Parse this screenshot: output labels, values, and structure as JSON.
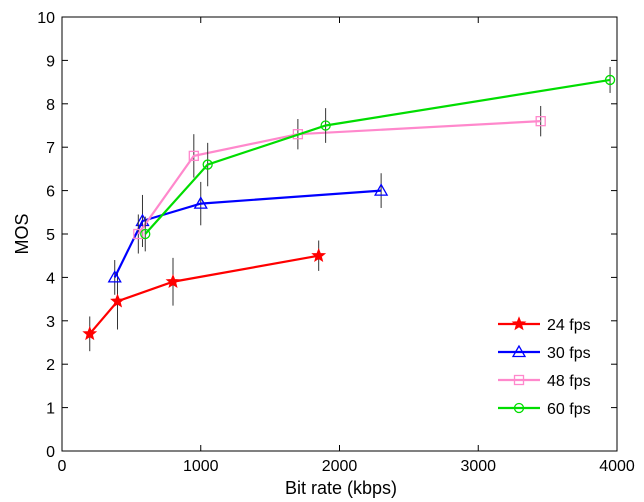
{
  "chart_data": {
    "type": "line",
    "xlabel": "Bit rate (kbps)",
    "ylabel": "MOS",
    "xlim": [
      0,
      4000
    ],
    "ylim": [
      0,
      10
    ],
    "xticks": [
      0,
      1000,
      2000,
      3000,
      4000
    ],
    "yticks": [
      0,
      1,
      2,
      3,
      4,
      5,
      6,
      7,
      8,
      9,
      10
    ],
    "xtick_labels": [
      "0",
      "1000",
      "2000",
      "3000",
      "4000"
    ],
    "ytick_labels": [
      "0",
      "1",
      "2",
      "3",
      "4",
      "5",
      "6",
      "7",
      "8",
      "9",
      "10"
    ],
    "grid": false,
    "legend_position": "bottom-right",
    "series": [
      {
        "name": "24 fps",
        "color": "#ff0000",
        "marker": "star",
        "points": [
          {
            "x": 200,
            "y": 2.7,
            "err": 0.4
          },
          {
            "x": 400,
            "y": 3.45,
            "err": 0.65
          },
          {
            "x": 800,
            "y": 3.9,
            "err": 0.55
          },
          {
            "x": 1850,
            "y": 4.5,
            "err": 0.35
          }
        ]
      },
      {
        "name": "30 fps",
        "color": "#0000ff",
        "marker": "triangle",
        "points": [
          {
            "x": 380,
            "y": 4.0,
            "err": 0.4
          },
          {
            "x": 580,
            "y": 5.3,
            "err": 0.6
          },
          {
            "x": 1000,
            "y": 5.7,
            "err": 0.5
          },
          {
            "x": 2300,
            "y": 6.0,
            "err": 0.4
          }
        ]
      },
      {
        "name": "48 fps",
        "color": "#ff88cc",
        "marker": "square",
        "points": [
          {
            "x": 550,
            "y": 5.0,
            "err": 0.45
          },
          {
            "x": 950,
            "y": 6.8,
            "err": 0.5
          },
          {
            "x": 1700,
            "y": 7.3,
            "err": 0.35
          },
          {
            "x": 3450,
            "y": 7.6,
            "err": 0.35
          }
        ]
      },
      {
        "name": "60 fps",
        "color": "#00dd00",
        "marker": "circle",
        "points": [
          {
            "x": 600,
            "y": 5.0,
            "err": 0.4
          },
          {
            "x": 1050,
            "y": 6.6,
            "err": 0.5
          },
          {
            "x": 1900,
            "y": 7.5,
            "err": 0.4
          },
          {
            "x": 3950,
            "y": 8.55,
            "err": 0.3
          }
        ]
      }
    ]
  }
}
